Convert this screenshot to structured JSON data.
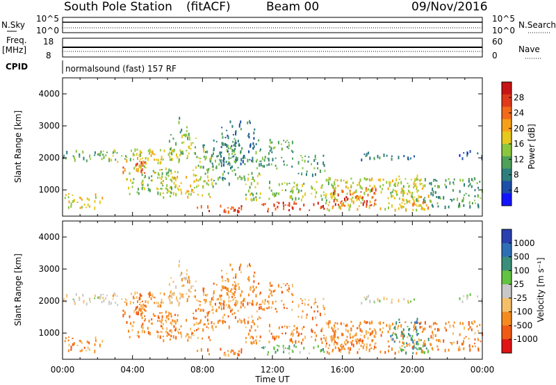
{
  "header": {
    "station": "South Pole Station",
    "mode": "(fitACF)",
    "beam": "Beam 00",
    "date": "09/Nov/2016"
  },
  "status_panels": {
    "nsky_label": "N.Sky",
    "nsearch_label": "N.Search",
    "noise_ticks": [
      "10^5",
      "10^0"
    ],
    "freq_label_1": "Freq.",
    "freq_label_2": "[MHz]",
    "freq_ticks": [
      "18",
      "8"
    ],
    "nave_label": "Nave",
    "nave_ticks": [
      "60",
      "0"
    ],
    "cpid_label": "CPID",
    "cpid_text": "normalsound (fast) 157 RF"
  },
  "chart_data": [
    {
      "type": "heatmap",
      "name": "power",
      "ylabel": "Slant Range [km]",
      "xlabel": "",
      "yticks": [
        "1000",
        "2000",
        "3000",
        "4000"
      ],
      "ylim": [
        180,
        4500
      ],
      "xlim": [
        0,
        24
      ],
      "colorbar": {
        "label": "Power [dB]",
        "ticks": [
          "4",
          "8",
          "12",
          "16",
          "20",
          "24",
          "28"
        ],
        "colors": [
          "#1414ff",
          "#1e4ea8",
          "#2f7d7d",
          "#4fa15a",
          "#8cc63f",
          "#e6c81e",
          "#f6a01a",
          "#f26a1b",
          "#e03a1a",
          "#c81414"
        ]
      }
    },
    {
      "type": "heatmap",
      "name": "velocity",
      "ylabel": "Slant Range [km]",
      "xlabel": "Time UT",
      "yticks": [
        "1000",
        "2000",
        "3000",
        "4000"
      ],
      "ylim": [
        180,
        4500
      ],
      "xlim": [
        0,
        24
      ],
      "xticks": [
        "00:00",
        "04:00",
        "08:00",
        "12:00",
        "16:00",
        "20:00",
        "00:00"
      ],
      "colorbar": {
        "label": "Velocity [m s⁻¹]",
        "ticks": [
          "1000",
          "500",
          "100",
          "25",
          "-25",
          "-100",
          "-500",
          "-1000"
        ],
        "colors": [
          "#2a3fb0",
          "#2f6fb5",
          "#3a8f7a",
          "#63c240",
          "#c8c8c8",
          "#f5bf6a",
          "#f58b1f",
          "#f05a14",
          "#e01414"
        ]
      }
    }
  ],
  "scatter_bands": [
    {
      "t0": 0.0,
      "t1": 2.6,
      "r0": 1950,
      "r1": 2250,
      "lvl": 3
    },
    {
      "t0": 2.0,
      "t1": 8.6,
      "r0": 1900,
      "r1": 2300,
      "lvl": 4
    },
    {
      "t0": 3.4,
      "t1": 4.8,
      "r0": 1500,
      "r1": 2000,
      "lvl": 7
    },
    {
      "t0": 4.0,
      "t1": 6.0,
      "r0": 1700,
      "r1": 2300,
      "lvl": 5
    },
    {
      "t0": 6.0,
      "t1": 7.6,
      "r0": 2100,
      "r1": 2800,
      "lvl": 4
    },
    {
      "t0": 6.6,
      "t1": 7.2,
      "r0": 2700,
      "r1": 3300,
      "lvl": 3
    },
    {
      "t0": 0.0,
      "t1": 2.3,
      "r0": 450,
      "r1": 900,
      "lvl": 5
    },
    {
      "t0": 3.6,
      "t1": 6.6,
      "r0": 900,
      "r1": 1700,
      "lvl": 4
    },
    {
      "t0": 5.4,
      "t1": 8.4,
      "r0": 800,
      "r1": 1500,
      "lvl": 5
    },
    {
      "t0": 7.6,
      "t1": 10.4,
      "r0": 350,
      "r1": 600,
      "lvl": 8
    },
    {
      "t0": 7.4,
      "t1": 8.6,
      "r0": 1100,
      "r1": 1800,
      "lvl": 4
    },
    {
      "t0": 8.0,
      "t1": 10.2,
      "r0": 1200,
      "r1": 2600,
      "lvl": 3
    },
    {
      "t0": 9.0,
      "t1": 11.0,
      "r0": 1800,
      "r1": 3200,
      "lvl": 2
    },
    {
      "t0": 10.2,
      "t1": 11.4,
      "r0": 700,
      "r1": 1600,
      "lvl": 4
    },
    {
      "t0": 11.0,
      "t1": 13.2,
      "r0": 1700,
      "r1": 2600,
      "lvl": 3
    },
    {
      "t0": 11.2,
      "t1": 15.2,
      "r0": 350,
      "r1": 650,
      "lvl": 8
    },
    {
      "t0": 11.6,
      "t1": 15.6,
      "r0": 700,
      "r1": 1300,
      "lvl": 4
    },
    {
      "t0": 13.4,
      "t1": 15.0,
      "r0": 1500,
      "r1": 2100,
      "lvl": 3
    },
    {
      "t0": 15.4,
      "t1": 18.0,
      "r0": 500,
      "r1": 1100,
      "lvl": 8
    },
    {
      "t0": 15.0,
      "t1": 20.6,
      "r0": 400,
      "r1": 1400,
      "lvl": 5
    },
    {
      "t0": 17.0,
      "t1": 20.2,
      "r0": 1950,
      "r1": 2200,
      "lvl": 2
    },
    {
      "t0": 19.2,
      "t1": 21.0,
      "r0": 400,
      "r1": 900,
      "lvl": 6
    },
    {
      "t0": 20.6,
      "t1": 24.0,
      "r0": 500,
      "r1": 1400,
      "lvl": 3
    },
    {
      "t0": 22.6,
      "t1": 24.0,
      "r0": 2000,
      "r1": 2250,
      "lvl": 1
    },
    {
      "t0": 18.6,
      "t1": 20.4,
      "r0": 700,
      "r1": 1500,
      "lvl": 4
    }
  ]
}
